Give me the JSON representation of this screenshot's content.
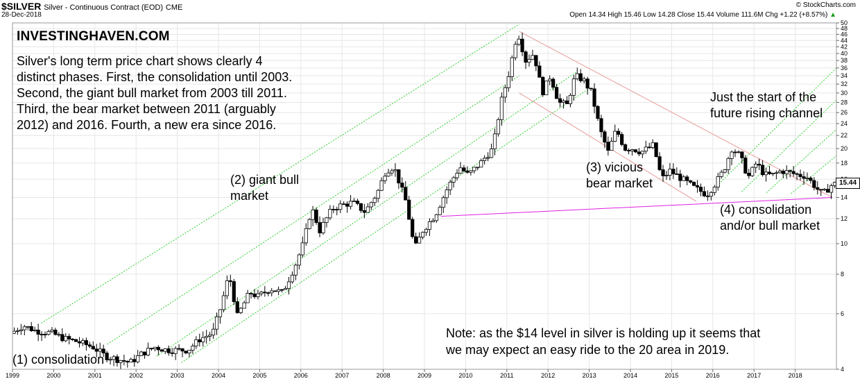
{
  "header": {
    "ticker": "$SILVER",
    "subtitle": "Silver - Continuous Contract (EOD)",
    "exchange": "CME",
    "date": "28-Dec-2018",
    "credit": "© StockCharts.com",
    "ohlc": "Open 14.34  High 15.46  Low 14.28  Close 15.44  Volume 111.6M  Chg +1.22 (+8.57%)",
    "arrow_glyph": "▲"
  },
  "brand": "INVESTINGHAVEN.COM",
  "annotations": {
    "intro": "Silver's long term price chart shows clearly 4\ndistinct phases. First, the consolidation until 2003.\nSecond, the giant bull market from 2003 till 2011.\nThird, the bear market between 2011 (arguably\n2012) and 2016. Fourth, a new era since 2016.",
    "phase2": "(2) giant bull\nmarket",
    "phase3": "(3) vicious\nbear market",
    "channel": "Just the start of the\nfuture rising channel",
    "phase4": "(4) consolidation\nand/or bull market",
    "note": "Note: as the $14 level in silver is holding up it seems that\nwe may expect an easy ride to the 20 area in 2019.",
    "phase1": "(1) consolidation"
  },
  "last_price_label": "15.44",
  "chart_data": {
    "type": "candlestick",
    "scale": "log",
    "ylim": [
      4,
      50
    ],
    "y_ticks": [
      4,
      6,
      8,
      10,
      12,
      14,
      16,
      18,
      20,
      22,
      24,
      26,
      28,
      30,
      32,
      34,
      36,
      38,
      40,
      42,
      44,
      46,
      48,
      50
    ],
    "x_ticks": [
      "1999",
      "2000",
      "2001",
      "2002",
      "2003",
      "2004",
      "2005",
      "2006",
      "2007",
      "2008",
      "2009",
      "2010",
      "2011",
      "2012",
      "2013",
      "2014",
      "2015",
      "2016",
      "2017",
      "2018"
    ],
    "x_range": [
      1999.0,
      2019.0
    ],
    "grid": true,
    "last_close": 15.44,
    "price_path": [
      [
        1999.0,
        5.2
      ],
      [
        1999.3,
        5.5
      ],
      [
        1999.6,
        5.3
      ],
      [
        2000.0,
        5.2
      ],
      [
        2000.3,
        5.0
      ],
      [
        2000.6,
        4.9
      ],
      [
        2001.0,
        4.7
      ],
      [
        2001.3,
        4.4
      ],
      [
        2001.6,
        4.3
      ],
      [
        2001.9,
        4.2
      ],
      [
        2002.2,
        4.5
      ],
      [
        2002.5,
        4.7
      ],
      [
        2002.8,
        4.6
      ],
      [
        2003.0,
        4.6
      ],
      [
        2003.3,
        4.6
      ],
      [
        2003.6,
        5.0
      ],
      [
        2003.9,
        5.2
      ],
      [
        2004.1,
        6.3
      ],
      [
        2004.3,
        8.0
      ],
      [
        2004.5,
        5.9
      ],
      [
        2004.8,
        7.0
      ],
      [
        2005.0,
        6.8
      ],
      [
        2005.3,
        7.2
      ],
      [
        2005.6,
        7.0
      ],
      [
        2005.9,
        8.5
      ],
      [
        2006.1,
        10.0
      ],
      [
        2006.3,
        13.0
      ],
      [
        2006.5,
        11.0
      ],
      [
        2006.8,
        12.9
      ],
      [
        2007.0,
        13.2
      ],
      [
        2007.3,
        13.5
      ],
      [
        2007.6,
        12.6
      ],
      [
        2007.9,
        14.5
      ],
      [
        2008.1,
        17.0
      ],
      [
        2008.3,
        17.5
      ],
      [
        2008.6,
        13.5
      ],
      [
        2008.8,
        9.6
      ],
      [
        2009.0,
        11.0
      ],
      [
        2009.3,
        12.3
      ],
      [
        2009.6,
        15.0
      ],
      [
        2009.9,
        17.5
      ],
      [
        2010.1,
        16.5
      ],
      [
        2010.4,
        18.0
      ],
      [
        2010.7,
        20.0
      ],
      [
        2010.9,
        28.0
      ],
      [
        2011.1,
        35.0
      ],
      [
        2011.3,
        47.0
      ],
      [
        2011.5,
        38.0
      ],
      [
        2011.7,
        40.0
      ],
      [
        2011.9,
        30.0
      ],
      [
        2012.1,
        34.0
      ],
      [
        2012.3,
        28.0
      ],
      [
        2012.5,
        27.5
      ],
      [
        2012.7,
        34.0
      ],
      [
        2012.9,
        33.0
      ],
      [
        2013.1,
        30.0
      ],
      [
        2013.3,
        23.0
      ],
      [
        2013.5,
        19.5
      ],
      [
        2013.7,
        23.0
      ],
      [
        2013.9,
        20.0
      ],
      [
        2014.1,
        20.0
      ],
      [
        2014.3,
        19.5
      ],
      [
        2014.6,
        20.5
      ],
      [
        2014.8,
        16.0
      ],
      [
        2015.0,
        17.0
      ],
      [
        2015.3,
        16.0
      ],
      [
        2015.6,
        15.0
      ],
      [
        2015.9,
        14.3
      ],
      [
        2016.1,
        15.5
      ],
      [
        2016.3,
        17.0
      ],
      [
        2016.5,
        20.0
      ],
      [
        2016.7,
        19.0
      ],
      [
        2016.9,
        16.2
      ],
      [
        2017.1,
        18.0
      ],
      [
        2017.3,
        16.5
      ],
      [
        2017.5,
        16.5
      ],
      [
        2017.7,
        17.0
      ],
      [
        2017.9,
        16.8
      ],
      [
        2018.1,
        16.5
      ],
      [
        2018.3,
        16.4
      ],
      [
        2018.5,
        15.3
      ],
      [
        2018.7,
        14.3
      ],
      [
        2018.95,
        15.44
      ]
    ],
    "rising_channel_lines": [
      {
        "x0": 1999.7,
        "y0": 5.6,
        "x1": 2011.3,
        "y1": 49.5
      },
      {
        "x0": 2001.3,
        "y0": 4.8,
        "x1": 2011.3,
        "y1": 34.0
      },
      {
        "x0": 2002.5,
        "y0": 4.4,
        "x1": 2012.7,
        "y1": 35.0
      },
      {
        "x0": 2003.1,
        "y0": 4.2,
        "x1": 2013.0,
        "y1": 31.0
      }
    ],
    "falling_channel_lines": [
      {
        "x0": 2011.3,
        "y0": 47.0,
        "x1": 2018.9,
        "y1": 14.0
      },
      {
        "x0": 2011.3,
        "y0": 30.0,
        "x1": 2015.6,
        "y1": 13.6
      }
    ],
    "future_channel_lines": [
      {
        "x0": 2016.0,
        "y0": 14.8,
        "x1": 2019.0,
        "y1": 36.0
      },
      {
        "x0": 2016.7,
        "y0": 14.6,
        "x1": 2019.0,
        "y1": 28.5
      },
      {
        "x0": 2017.3,
        "y0": 14.5,
        "x1": 2019.0,
        "y1": 23.0
      },
      {
        "x0": 2017.9,
        "y0": 14.4,
        "x1": 2019.0,
        "y1": 19.0
      }
    ],
    "support_line": {
      "x0": 2009.4,
      "y0": 12.2,
      "x1": 2018.9,
      "y1": 14.0
    },
    "colors": {
      "candle": "#000000",
      "rising_channel": "#2ecc2e",
      "falling_channel": "#e89a9a",
      "support": "#e020e0",
      "grid": "#e6e6e6"
    }
  }
}
